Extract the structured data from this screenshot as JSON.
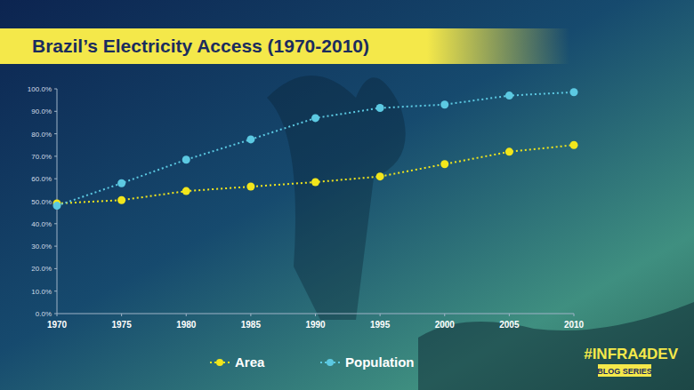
{
  "chart_data": {
    "type": "line",
    "title": "Brazil’s Electricity Access (1970-2010)",
    "x": [
      1970,
      1975,
      1980,
      1985,
      1990,
      1995,
      2000,
      2005,
      2010
    ],
    "series": [
      {
        "name": "Area",
        "color": "#f2e61c",
        "marker": "circle",
        "line_style": "dotted",
        "values": [
          49,
          50.5,
          54.5,
          56.5,
          58.5,
          61,
          66.5,
          72,
          75
        ]
      },
      {
        "name": "Population",
        "color": "#5cc9e2",
        "marker": "circle",
        "line_style": "dotted",
        "values": [
          48,
          58,
          68.5,
          77.5,
          87,
          91.5,
          93,
          97,
          98.5
        ]
      }
    ],
    "xlim": [
      1970,
      2010
    ],
    "xticks": [
      1970,
      1975,
      1980,
      1985,
      1990,
      1995,
      2000,
      2005,
      2010
    ],
    "ylim": [
      0,
      100
    ],
    "yticks": [
      {
        "value": 0,
        "label": "0.0%"
      },
      {
        "value": 10,
        "label": "10.0%"
      },
      {
        "value": 20,
        "label": "20.0%"
      },
      {
        "value": 30,
        "label": "30.0%"
      },
      {
        "value": 40,
        "label": "40.0%"
      },
      {
        "value": 50,
        "label": "50.0%"
      },
      {
        "value": 60,
        "label": "60.0%"
      },
      {
        "value": 70,
        "label": "70.0%"
      },
      {
        "value": 80,
        "label": "80.0%"
      },
      {
        "value": 90,
        "label": "90.0%"
      },
      {
        "value": 100,
        "label": "100.0%"
      }
    ],
    "grid": false,
    "legend": "bottom",
    "annotations": [
      "#INFRA4DEV",
      "BLOG SERIES"
    ]
  }
}
